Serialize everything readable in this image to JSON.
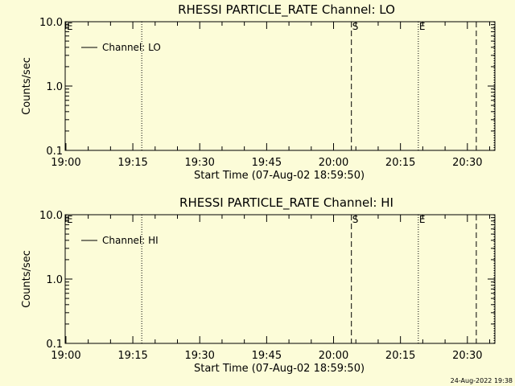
{
  "footer": {
    "timestamp": "24-Aug-2022 19:38"
  },
  "chart_data": [
    {
      "type": "line",
      "title": "RHESSI PARTICLE_RATE Channel: LO",
      "xlabel": "Start Time (07-Aug-02 18:59:50)",
      "ylabel": "Counts/sec",
      "yscale": "log",
      "xlim": [
        "19:00",
        "20:36"
      ],
      "ylim": [
        0.1,
        10.0
      ],
      "x_ticks": [
        "19:00",
        "19:15",
        "19:30",
        "19:45",
        "20:00",
        "20:15",
        "20:30"
      ],
      "y_ticks": [
        "0.1",
        "1.0",
        "10.0"
      ],
      "legend": {
        "position": "top-left",
        "entries": [
          "Channel: LO"
        ]
      },
      "series": [
        {
          "name": "Channel: LO",
          "values": []
        }
      ],
      "markers": [
        {
          "time": "19:00",
          "style": "dotted",
          "label": "E"
        },
        {
          "time": "19:17",
          "style": "dotted",
          "label": ""
        },
        {
          "time": "20:04",
          "style": "dashed",
          "label": "S"
        },
        {
          "time": "20:19",
          "style": "dotted",
          "label": "E"
        },
        {
          "time": "20:32",
          "style": "dashed",
          "label": ""
        },
        {
          "time": "20:36",
          "style": "dotted",
          "label": ""
        }
      ]
    },
    {
      "type": "line",
      "title": "RHESSI PARTICLE_RATE Channel: HI",
      "xlabel": "Start Time (07-Aug-02 18:59:50)",
      "ylabel": "Counts/sec",
      "yscale": "log",
      "xlim": [
        "19:00",
        "20:36"
      ],
      "ylim": [
        0.1,
        10.0
      ],
      "x_ticks": [
        "19:00",
        "19:15",
        "19:30",
        "19:45",
        "20:00",
        "20:15",
        "20:30"
      ],
      "y_ticks": [
        "0.1",
        "1.0",
        "10.0"
      ],
      "legend": {
        "position": "top-left",
        "entries": [
          "Channel: HI"
        ]
      },
      "series": [
        {
          "name": "Channel: HI",
          "values": []
        }
      ],
      "markers": [
        {
          "time": "19:00",
          "style": "dotted",
          "label": "E"
        },
        {
          "time": "19:17",
          "style": "dotted",
          "label": ""
        },
        {
          "time": "20:04",
          "style": "dashed",
          "label": "S"
        },
        {
          "time": "20:19",
          "style": "dotted",
          "label": "E"
        },
        {
          "time": "20:32",
          "style": "dashed",
          "label": ""
        },
        {
          "time": "20:36",
          "style": "dotted",
          "label": ""
        }
      ]
    }
  ]
}
